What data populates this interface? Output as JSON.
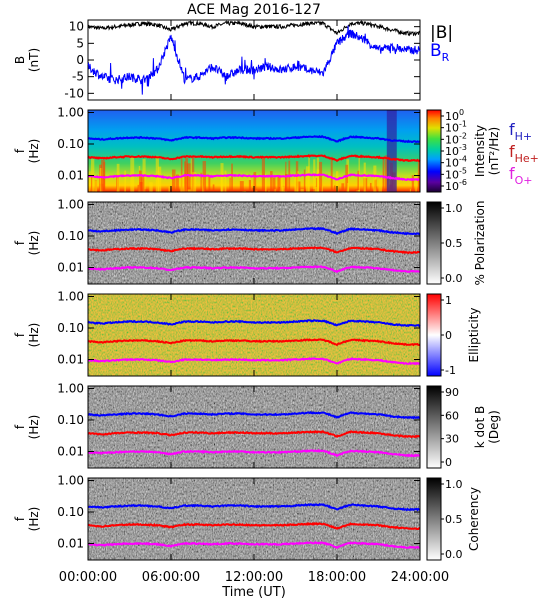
{
  "title": "ACE Mag 2016-127",
  "xlabel": "Time (UT)",
  "x_ticks": [
    "00:00:00",
    "06:00:00",
    "12:00:00",
    "18:00:00",
    "24:00:00"
  ],
  "x_tick_hours": [
    0,
    6,
    12,
    18,
    24
  ],
  "x_range_hours": [
    0,
    24
  ],
  "colors": {
    "black": "#000000",
    "blue": "#0000ff",
    "red": "#ff0000",
    "magenta": "#ff00ff"
  },
  "mag_panel": {
    "ylabel_line1": "B",
    "ylabel_line2": "(nT)",
    "y_ticks": [
      "10",
      "5",
      "0",
      "-5",
      "-10"
    ],
    "y_tick_values": [
      10,
      5,
      0,
      -5,
      -10
    ],
    "ylim": [
      -12,
      12
    ],
    "legend": {
      "total": "|B|",
      "radial_base": "B",
      "radial_sub": "R"
    }
  },
  "freq_y": {
    "ticks": [
      "1.00",
      "0.10",
      "0.01"
    ],
    "tick_values": [
      1.0,
      0.1,
      0.01
    ],
    "ylim": [
      0.003,
      1.2
    ],
    "scale": "log",
    "ylabel_line1": "f",
    "ylabel_line2": "(Hz)"
  },
  "panels": [
    {
      "id": "intensity",
      "colormap": "rainbow",
      "colorbar_title_line1": "Intensity",
      "colorbar_title_line2": "(nT²/Hz)",
      "colorbar_ticks": [
        {
          "base": "10",
          "exp": "0"
        },
        {
          "base": "10",
          "exp": "-1"
        },
        {
          "base": "10",
          "exp": "-2"
        },
        {
          "base": "10",
          "exp": "-3"
        },
        {
          "base": "10",
          "exp": "-4"
        },
        {
          "base": "10",
          "exp": "-5"
        },
        {
          "base": "10",
          "exp": "-6"
        }
      ],
      "legend": [
        {
          "base": "f",
          "sub": "H+",
          "color": "#1f1fbf"
        },
        {
          "base": "f",
          "sub": "He+",
          "color": "#c02020"
        },
        {
          "base": "f",
          "sub": "O+",
          "color": "#e020e0"
        }
      ]
    },
    {
      "id": "polarization",
      "colormap": "gray",
      "colorbar_title": "% Polarization",
      "colorbar_ticks": [
        "1.0",
        "0.5",
        "0.0"
      ]
    },
    {
      "id": "ellipticity",
      "colormap": "bluewhitered",
      "colorbar_title": "Ellipticity",
      "colorbar_ticks": [
        "1",
        "0",
        "-1"
      ]
    },
    {
      "id": "kdotb",
      "colormap": "gray",
      "colorbar_title_line1": "k dot B",
      "colorbar_title_line2": "(Deg)",
      "colorbar_ticks": [
        "90",
        "60",
        "30",
        "0"
      ]
    },
    {
      "id": "coherency",
      "colormap": "gray",
      "colorbar_title": "Coherency",
      "colorbar_ticks": [
        "1.0",
        "0.5",
        "0.0"
      ]
    }
  ],
  "chart_data": {
    "type": "line",
    "title": "ACE Mag 2016-127",
    "xlabel": "Time (UT)",
    "x_range_hours": [
      0,
      24
    ],
    "magnetic_field": {
      "ylabel": "B (nT)",
      "ylim": [
        -12,
        12
      ],
      "series": [
        {
          "name": "|B|",
          "hours": [
            0,
            1,
            2,
            3,
            4,
            5,
            6,
            7,
            8,
            9,
            10,
            11,
            12,
            13,
            14,
            15,
            16,
            17,
            18,
            19,
            20,
            21,
            22,
            23,
            24
          ],
          "values": [
            10,
            9.5,
            10,
            10.5,
            11,
            10.5,
            9,
            11,
            11,
            10,
            11,
            11,
            10,
            10,
            10,
            10.5,
            11,
            11,
            8,
            11,
            11,
            10,
            9,
            8,
            8
          ]
        },
        {
          "name": "B_R",
          "hours": [
            0,
            1,
            2,
            3,
            4,
            5,
            6,
            7,
            8,
            9,
            10,
            11,
            12,
            13,
            14,
            15,
            16,
            17,
            18,
            19,
            20,
            21,
            22,
            23,
            24
          ],
          "values": [
            -2,
            -5,
            -6,
            -5,
            -6,
            -3,
            7,
            -6,
            -5,
            -2,
            -5,
            -3,
            -3,
            -2,
            -3,
            -2,
            -3,
            -4,
            5,
            8,
            6,
            3,
            4,
            3,
            3
          ]
        }
      ]
    },
    "ion_gyrofrequencies": {
      "ylabel": "f (Hz)",
      "yscale": "log",
      "ylim": [
        0.003,
        1.2
      ],
      "series": [
        {
          "name": "f_H+",
          "hours": [
            0,
            1,
            2,
            3,
            4,
            5,
            6,
            7,
            8,
            9,
            10,
            11,
            12,
            13,
            14,
            15,
            16,
            17,
            18,
            19,
            20,
            21,
            22,
            23,
            24
          ],
          "values": [
            0.15,
            0.14,
            0.15,
            0.16,
            0.16,
            0.15,
            0.13,
            0.16,
            0.16,
            0.15,
            0.16,
            0.16,
            0.15,
            0.15,
            0.15,
            0.16,
            0.17,
            0.17,
            0.12,
            0.17,
            0.16,
            0.15,
            0.13,
            0.12,
            0.12
          ]
        },
        {
          "name": "f_He+",
          "hours": [
            0,
            1,
            2,
            3,
            4,
            5,
            6,
            7,
            8,
            9,
            10,
            11,
            12,
            13,
            14,
            15,
            16,
            17,
            18,
            19,
            20,
            21,
            22,
            23,
            24
          ],
          "values": [
            0.038,
            0.035,
            0.038,
            0.04,
            0.04,
            0.038,
            0.033,
            0.04,
            0.04,
            0.038,
            0.04,
            0.04,
            0.038,
            0.038,
            0.038,
            0.04,
            0.042,
            0.042,
            0.03,
            0.042,
            0.04,
            0.038,
            0.033,
            0.03,
            0.03
          ]
        },
        {
          "name": "f_O+",
          "hours": [
            0,
            1,
            2,
            3,
            4,
            5,
            6,
            7,
            8,
            9,
            10,
            11,
            12,
            13,
            14,
            15,
            16,
            17,
            18,
            19,
            20,
            21,
            22,
            23,
            24
          ],
          "values": [
            0.0095,
            0.0088,
            0.0095,
            0.01,
            0.01,
            0.0095,
            0.0083,
            0.01,
            0.01,
            0.0095,
            0.01,
            0.01,
            0.0095,
            0.0095,
            0.0095,
            0.01,
            0.0105,
            0.0105,
            0.0075,
            0.0105,
            0.01,
            0.0095,
            0.0083,
            0.0075,
            0.0075
          ]
        }
      ]
    },
    "spectrogram_panels": [
      "Intensity",
      "% Polarization",
      "Ellipticity",
      "k dot B",
      "Coherency"
    ]
  }
}
